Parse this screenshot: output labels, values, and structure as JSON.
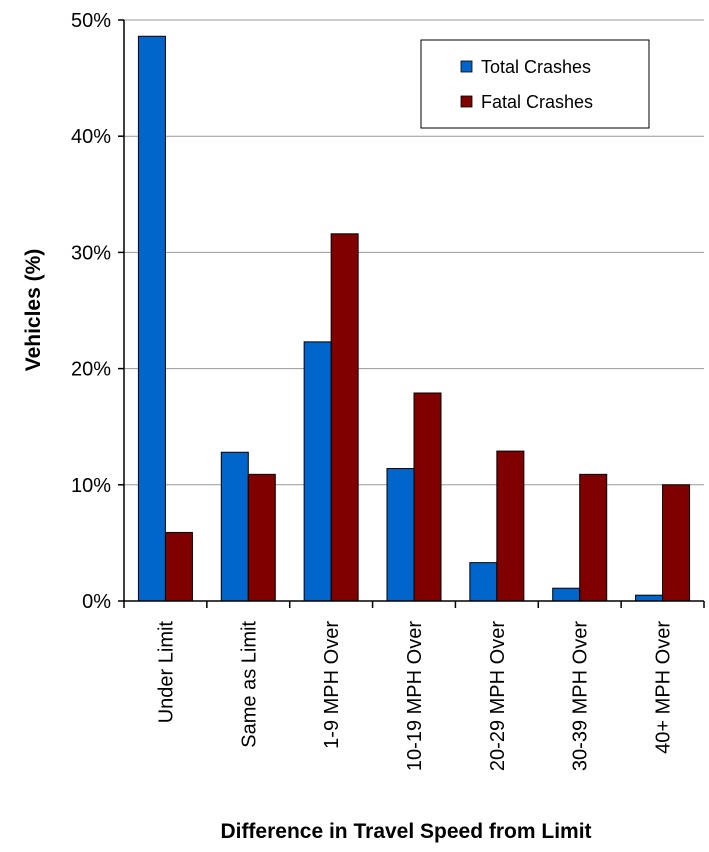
{
  "chart_data": {
    "type": "bar",
    "categories": [
      "Under Limit",
      "Same as Limit",
      "1-9 MPH Over",
      "10-19 MPH Over",
      "20-29 MPH Over",
      "30-39 MPH Over",
      "40+ MPH Over"
    ],
    "series": [
      {
        "name": "Total Crashes",
        "color": "#0066cc",
        "values": [
          48.6,
          12.8,
          22.3,
          11.4,
          3.3,
          1.1,
          0.5
        ]
      },
      {
        "name": "Fatal Crashes",
        "color": "#800000",
        "values": [
          5.9,
          10.9,
          31.6,
          17.9,
          12.9,
          10.9,
          10.0
        ]
      }
    ],
    "xlabel": "Difference in Travel Speed from Limit",
    "ylabel": "Vehicles (%)",
    "ylim": [
      0,
      50
    ],
    "yticks": [
      "0%",
      "10%",
      "20%",
      "30%",
      "40%",
      "50%"
    ],
    "grid": true,
    "legend_position": "top-right"
  }
}
